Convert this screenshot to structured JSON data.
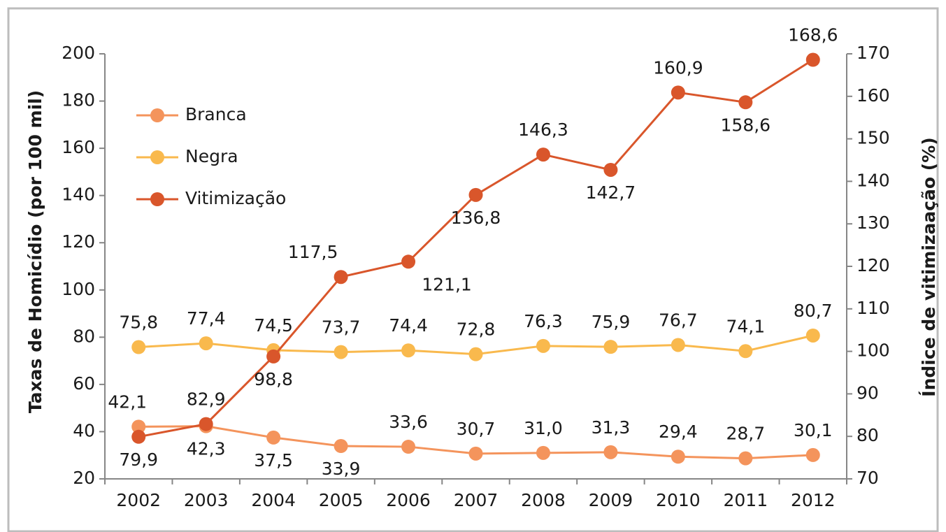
{
  "chart_data": {
    "type": "line",
    "categories": [
      "2002",
      "2003",
      "2004",
      "2005",
      "2006",
      "2007",
      "2008",
      "2009",
      "2010",
      "2011",
      "2012"
    ],
    "series": [
      {
        "name": "Branca",
        "color": "#f4945c",
        "values": [
          42.1,
          42.3,
          37.5,
          33.9,
          33.6,
          30.7,
          31.0,
          31.3,
          29.4,
          28.7,
          30.1
        ],
        "value_labels": [
          "42,1",
          "42,3",
          "37,5",
          "33,9",
          "33,6",
          "30,7",
          "31,0",
          "31,3",
          "29,4",
          "28,7",
          "30,1"
        ]
      },
      {
        "name": "Negra",
        "color": "#f9b94d",
        "values": [
          75.8,
          77.4,
          74.5,
          73.7,
          74.4,
          72.8,
          76.3,
          75.9,
          76.7,
          74.1,
          80.7
        ],
        "value_labels": [
          "75,8",
          "77,4",
          "74,5",
          "73,7",
          "74,4",
          "72,8",
          "76,3",
          "75,9",
          "76,7",
          "74,1",
          "80,7"
        ]
      },
      {
        "name": "Vitimização",
        "color": "#d9562b",
        "axis": "y2",
        "values": [
          79.9,
          82.9,
          98.8,
          117.5,
          121.1,
          136.8,
          146.3,
          142.7,
          160.9,
          158.6,
          168.6
        ],
        "value_labels": [
          "79,9",
          "82,9",
          "98,8",
          "117,5",
          "121,1",
          "136,8",
          "146,3",
          "142,7",
          "160,9",
          "158,6",
          "168,6"
        ]
      }
    ],
    "ylabel": "Taxas de Homicídio (por 100 mil)",
    "y2label": "Índice de vitimizaação (%)",
    "ylim": [
      20,
      200
    ],
    "yticks": [
      20,
      40,
      60,
      80,
      100,
      120,
      140,
      160,
      180,
      200
    ],
    "y2lim": [
      70,
      170
    ],
    "y2ticks": [
      70,
      80,
      90,
      100,
      110,
      120,
      130,
      140,
      150,
      160,
      170
    ],
    "grid": false,
    "legend": "upper left"
  }
}
